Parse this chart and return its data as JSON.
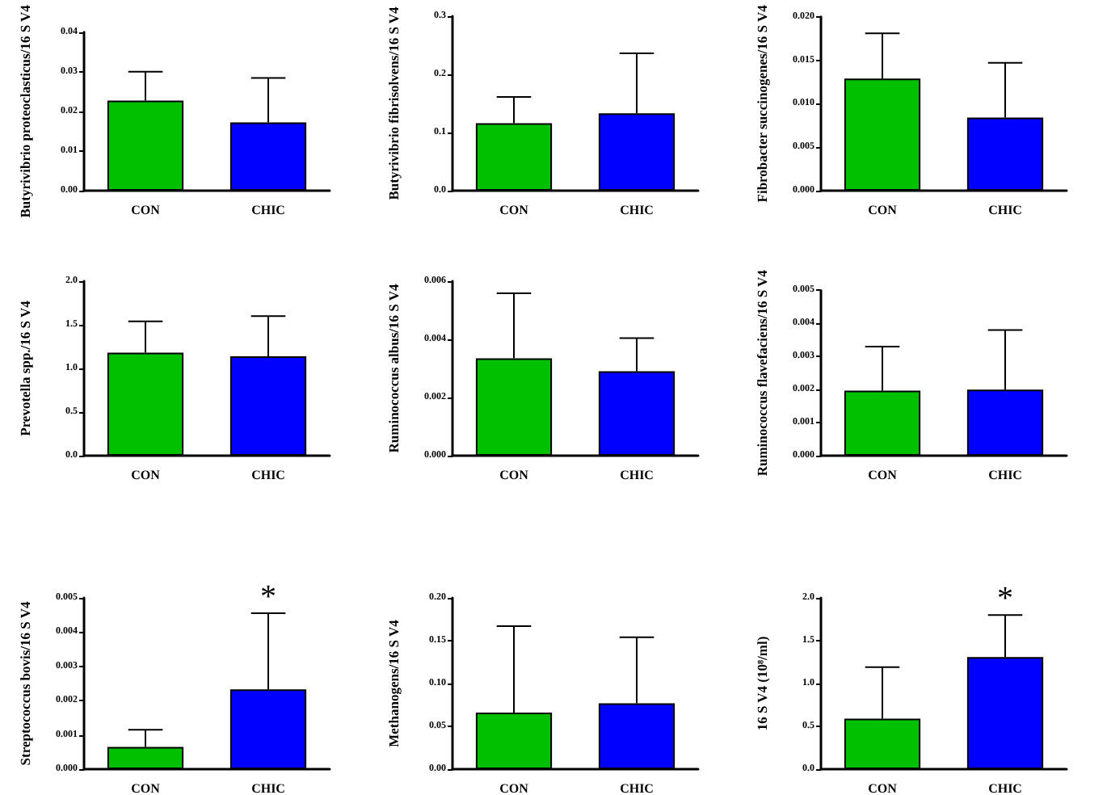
{
  "chart_data": [
    {
      "type": "bar",
      "ylabel": "Butyrivibrio proteoclasticus/16 S V4",
      "categories": [
        "CON",
        "CHIC"
      ],
      "values": [
        0.0227,
        0.0172
      ],
      "colors": [
        "#00c000",
        "#0000ff"
      ],
      "errors": [
        [
          0.0227,
          0.03
        ],
        [
          0.0172,
          0.0284
        ]
      ],
      "ylim": [
        0,
        0.04
      ],
      "yticks": [
        {
          "value": 0,
          "label": "0.00"
        },
        {
          "value": 0.01,
          "label": "0.01"
        },
        {
          "value": 0.02,
          "label": "0.02"
        },
        {
          "value": 0.03,
          "label": "0.03"
        },
        {
          "value": 0.04,
          "label": "0.04"
        }
      ]
    },
    {
      "type": "bar",
      "ylabel": "Butyrivibrio fibrisolvens/16 S V4",
      "categories": [
        "CON",
        "CHIC"
      ],
      "values": [
        0.116,
        0.133
      ],
      "colors": [
        "#00c000",
        "#0000ff"
      ],
      "errors": [
        [
          0.116,
          0.161
        ],
        [
          0.133,
          0.236
        ]
      ],
      "ylim": [
        0,
        0.3
      ],
      "yticks": [
        {
          "value": 0,
          "label": "0.0"
        },
        0.1,
        0.2,
        0.3
      ]
    },
    {
      "type": "bar",
      "ylabel": "Fibrobacter succinogenes/16 S V4",
      "categories": [
        "CON",
        "CHIC"
      ],
      "values": [
        0.0129,
        0.0084
      ],
      "colors": [
        "#00c000",
        "#0000ff"
      ],
      "errors": [
        [
          0.0129,
          0.0181
        ],
        [
          0.0084,
          0.0147
        ]
      ],
      "ylim": [
        0,
        0.02
      ],
      "yticks": [
        {
          "value": 0,
          "label": "0.000"
        },
        {
          "value": 0.005,
          "label": "0.005"
        },
        {
          "value": 0.01,
          "label": "0.010"
        },
        {
          "value": 0.015,
          "label": "0.015"
        },
        {
          "value": 0.02,
          "label": "0.020"
        }
      ]
    },
    {
      "type": "bar",
      "ylabel": "Prevotella spp./16 S V4",
      "categories": [
        "CON",
        "CHIC"
      ],
      "values": [
        1.18,
        1.14
      ],
      "colors": [
        "#00c000",
        "#0000ff"
      ],
      "errors": [
        [
          1.18,
          1.54
        ],
        [
          1.14,
          1.6
        ]
      ],
      "ylim": [
        0,
        2
      ],
      "yticks": [
        {
          "value": 0,
          "label": "0.0"
        },
        0.5,
        {
          "value": 1,
          "label": "1.0"
        },
        1.5,
        {
          "value": 2,
          "label": "2.0"
        }
      ]
    },
    {
      "type": "bar",
      "ylabel": "Ruminococcus albus/16 S V4",
      "categories": [
        "CON",
        "CHIC"
      ],
      "values": [
        0.00335,
        0.0029
      ],
      "colors": [
        "#00c000",
        "#0000ff"
      ],
      "errors": [
        [
          0.00335,
          0.00558
        ],
        [
          0.0029,
          0.00404
        ]
      ],
      "ylim": [
        0,
        0.006
      ],
      "yticks": [
        {
          "value": 0,
          "label": "0.000"
        },
        {
          "value": 0.002,
          "label": "0.002"
        },
        {
          "value": 0.004,
          "label": "0.004"
        },
        {
          "value": 0.006,
          "label": "0.006"
        }
      ]
    },
    {
      "type": "bar",
      "ylabel": "Ruminococcus flavefaciens/16 S V4",
      "categories": [
        "CON",
        "CHIC"
      ],
      "values": [
        0.00197,
        0.002
      ],
      "colors": [
        "#00c000",
        "#0000ff"
      ],
      "errors": [
        [
          0.00197,
          0.0033
        ],
        [
          0.002,
          0.0038
        ]
      ],
      "ylim": [
        0,
        0.005
      ],
      "yticks": [
        {
          "value": 0,
          "label": "0.000"
        },
        {
          "value": 0.001,
          "label": "0.001"
        },
        {
          "value": 0.002,
          "label": "0.002"
        },
        {
          "value": 0.003,
          "label": "0.003"
        },
        {
          "value": 0.004,
          "label": "0.004"
        },
        {
          "value": 0.005,
          "label": "0.005"
        }
      ]
    },
    {
      "type": "bar",
      "ylabel": "Streptococcus bovis/16 S V4",
      "categories": [
        "CON",
        "CHIC"
      ],
      "values": [
        0.00065,
        0.00233
      ],
      "colors": [
        "#00c000",
        "#0000ff"
      ],
      "errors": [
        [
          0.00065,
          0.00115
        ],
        [
          0.00233,
          0.00455
        ]
      ],
      "ylim": [
        0,
        0.005
      ],
      "yticks": [
        {
          "value": 0,
          "label": "0.000"
        },
        {
          "value": 0.001,
          "label": "0.001"
        },
        {
          "value": 0.002,
          "label": "0.002"
        },
        {
          "value": 0.003,
          "label": "0.003"
        },
        {
          "value": 0.004,
          "label": "0.004"
        },
        {
          "value": 0.005,
          "label": "0.005"
        }
      ],
      "annotations": [
        {
          "text": "*",
          "x": "CHIC",
          "y": 0.00455
        }
      ]
    },
    {
      "type": "bar",
      "ylabel": "Methanogens/16 S V4",
      "categories": [
        "CON",
        "CHIC"
      ],
      "values": [
        0.066,
        0.077
      ],
      "colors": [
        "#00c000",
        "#0000ff"
      ],
      "errors": [
        [
          0.066,
          0.167
        ],
        [
          0.077,
          0.154
        ]
      ],
      "ylim": [
        0,
        0.2
      ],
      "yticks": [
        {
          "value": 0,
          "label": "0.00"
        },
        0.05,
        {
          "value": 0.1,
          "label": "0.10"
        },
        0.15,
        {
          "value": 0.2,
          "label": "0.20"
        }
      ]
    },
    {
      "type": "bar",
      "ylabel": "16 S V4 (10⁸/ml)",
      "categories": [
        "CON",
        "CHIC"
      ],
      "values": [
        0.59,
        1.31
      ],
      "colors": [
        "#00c000",
        "#0000ff"
      ],
      "errors": [
        [
          0.59,
          1.19
        ],
        [
          1.31,
          1.8
        ]
      ],
      "ylim": [
        0,
        2
      ],
      "yticks": [
        {
          "value": 0,
          "label": "0.0"
        },
        0.5,
        {
          "value": 1,
          "label": "1.0"
        },
        1.5,
        {
          "value": 2,
          "label": "2.0"
        }
      ],
      "annotations": [
        {
          "text": "*",
          "x": "CHIC",
          "y": 1.8
        }
      ]
    }
  ]
}
